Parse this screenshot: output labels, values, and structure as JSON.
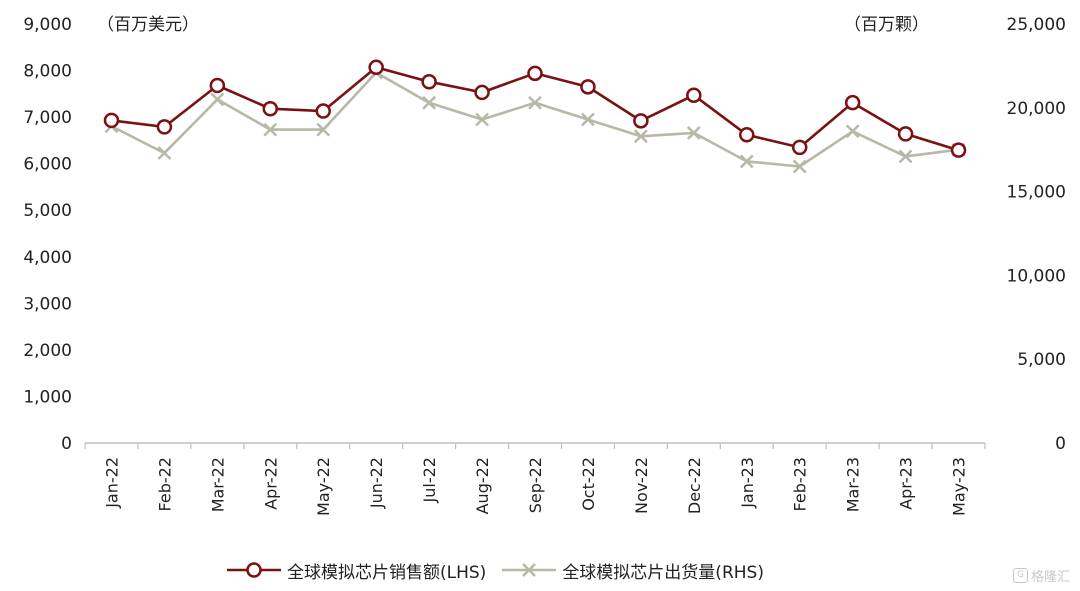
{
  "chart_data": {
    "type": "line",
    "categories": [
      "Jan-22",
      "Feb-22",
      "Mar-22",
      "Apr-22",
      "May-22",
      "Jun-22",
      "Jul-22",
      "Aug-22",
      "Sep-22",
      "Oct-22",
      "Nov-22",
      "Dec-22",
      "Jan-23",
      "Feb-23",
      "Mar-23",
      "Apr-23",
      "May-23"
    ],
    "series": [
      {
        "name": "全球模拟芯片销售额(LHS)",
        "axis": "left",
        "color": "#7b1113",
        "marker": "circle",
        "values": [
          6930,
          6790,
          7680,
          7180,
          7130,
          8070,
          7760,
          7530,
          7940,
          7650,
          6920,
          7470,
          6620,
          6350,
          7310,
          6640,
          6290
        ]
      },
      {
        "name": "全球模拟芯片出货量(RHS)",
        "axis": "right",
        "color": "#b8b8a8",
        "marker": "x",
        "values": [
          18900,
          17300,
          20500,
          18700,
          18700,
          22100,
          20300,
          19300,
          20300,
          19300,
          18300,
          18500,
          16800,
          16500,
          18600,
          17100,
          17500
        ]
      }
    ],
    "left_axis": {
      "unit": "（百万美元）",
      "ylim": [
        0,
        9000
      ],
      "ticks": [
        "0",
        "1,000",
        "2,000",
        "3,000",
        "4,000",
        "5,000",
        "6,000",
        "7,000",
        "8,000",
        "9,000"
      ]
    },
    "right_axis": {
      "unit": "（百万颗）",
      "ylim": [
        0,
        25000
      ],
      "ticks": [
        "0",
        "5,000",
        "10,000",
        "15,000",
        "20,000",
        "25,000"
      ]
    },
    "grid": false,
    "legend_position": "bottom"
  },
  "watermark": {
    "icon": "gelonghui-logo-icon",
    "text": "格隆汇"
  }
}
